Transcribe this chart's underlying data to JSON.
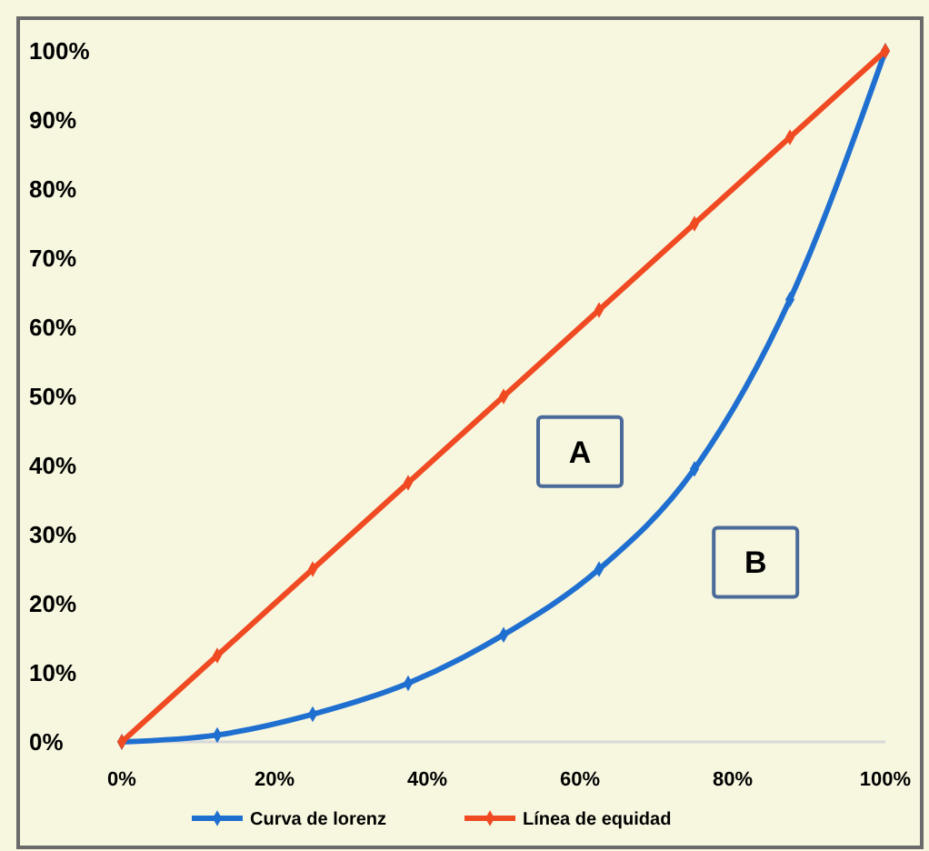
{
  "chart_data": {
    "type": "line",
    "x": [
      0,
      12.5,
      25,
      37.5,
      50,
      62.5,
      75,
      87.5,
      100
    ],
    "series": [
      {
        "name": "Curva de lorenz",
        "color": "#1f6fd0",
        "values": [
          0,
          1,
          4,
          8.5,
          15.5,
          25,
          39.5,
          64,
          100
        ]
      },
      {
        "name": "Línea de equidad",
        "color": "#f04a22",
        "values": [
          0,
          12.5,
          25,
          37.5,
          50,
          62.5,
          75,
          87.5,
          100
        ]
      }
    ],
    "xlim": [
      0,
      100
    ],
    "ylim": [
      0,
      100
    ],
    "xticks": [
      {
        "value": 0,
        "label": "0%"
      },
      {
        "value": 20,
        "label": "20%"
      },
      {
        "value": 40,
        "label": "40%"
      },
      {
        "value": 60,
        "label": "60%"
      },
      {
        "value": 80,
        "label": "80%"
      },
      {
        "value": 100,
        "label": "100%"
      }
    ],
    "yticks": [
      {
        "value": 0,
        "label": "0%"
      },
      {
        "value": 10,
        "label": "10%"
      },
      {
        "value": 20,
        "label": "20%"
      },
      {
        "value": 30,
        "label": "30%"
      },
      {
        "value": 40,
        "label": "40%"
      },
      {
        "value": 50,
        "label": "50%"
      },
      {
        "value": 60,
        "label": "60%"
      },
      {
        "value": 70,
        "label": "70%"
      },
      {
        "value": 80,
        "label": "80%"
      },
      {
        "value": 90,
        "label": "90%"
      },
      {
        "value": 100,
        "label": "100%"
      }
    ],
    "annotations": [
      "A",
      "B"
    ],
    "legend": "bottom",
    "marker": "diamond",
    "line_style": "solid",
    "grid": false
  }
}
